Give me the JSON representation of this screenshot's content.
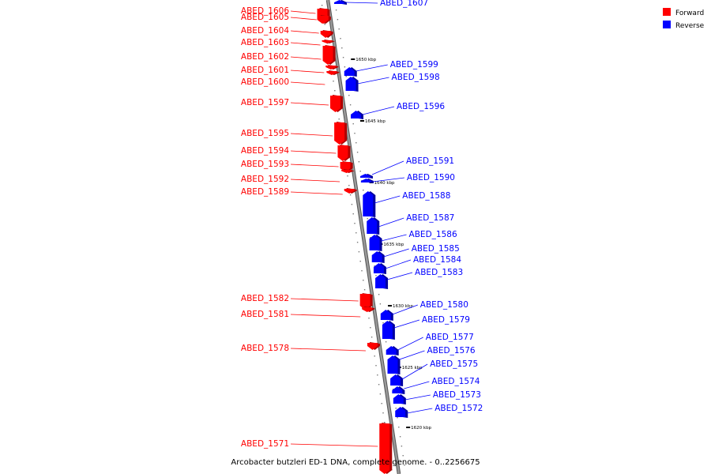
{
  "title": "Arcobacter butzleri ED-1 DNA, complete genome. - 0..2256675",
  "legend": {
    "placement": "top-right",
    "items": [
      {
        "label": "Forward",
        "color": "#ff0000"
      },
      {
        "label": "Reverse",
        "color": "#0000ff"
      }
    ]
  },
  "colors": {
    "forward": "#ff0000",
    "forward_dark": "#b00000",
    "reverse": "#0000ff",
    "reverse_dark": "#0000a0",
    "backbone": "#999999",
    "backbone_edge": "#555555"
  },
  "scale_ticks": [
    {
      "label": "1650 kbp"
    },
    {
      "label": "1645 kbp"
    },
    {
      "label": "1640 kbp"
    },
    {
      "label": "1635 kbp"
    },
    {
      "label": "1630 kbp"
    },
    {
      "label": "1625 kbp"
    },
    {
      "label": "1620 kbp"
    }
  ],
  "genes_forward": [
    {
      "name": "ABED_1606"
    },
    {
      "name": "ABED_1605"
    },
    {
      "name": "ABED_1604"
    },
    {
      "name": "ABED_1603"
    },
    {
      "name": "ABED_1602"
    },
    {
      "name": "ABED_1601"
    },
    {
      "name": "ABED_1600"
    },
    {
      "name": "ABED_1597"
    },
    {
      "name": "ABED_1595"
    },
    {
      "name": "ABED_1594"
    },
    {
      "name": "ABED_1593"
    },
    {
      "name": "ABED_1592"
    },
    {
      "name": "ABED_1589"
    },
    {
      "name": "ABED_1582"
    },
    {
      "name": "ABED_1581"
    },
    {
      "name": "ABED_1578"
    },
    {
      "name": "ABED_1571"
    }
  ],
  "genes_reverse": [
    {
      "name": "ABED_1607"
    },
    {
      "name": "ABED_1599"
    },
    {
      "name": "ABED_1598"
    },
    {
      "name": "ABED_1596"
    },
    {
      "name": "ABED_1591"
    },
    {
      "name": "ABED_1590"
    },
    {
      "name": "ABED_1588"
    },
    {
      "name": "ABED_1587"
    },
    {
      "name": "ABED_1586"
    },
    {
      "name": "ABED_1585"
    },
    {
      "name": "ABED_1584"
    },
    {
      "name": "ABED_1583"
    },
    {
      "name": "ABED_1580"
    },
    {
      "name": "ABED_1579"
    },
    {
      "name": "ABED_1577"
    },
    {
      "name": "ABED_1576"
    },
    {
      "name": "ABED_1575"
    },
    {
      "name": "ABED_1574"
    },
    {
      "name": "ABED_1573"
    },
    {
      "name": "ABED_1572"
    }
  ]
}
